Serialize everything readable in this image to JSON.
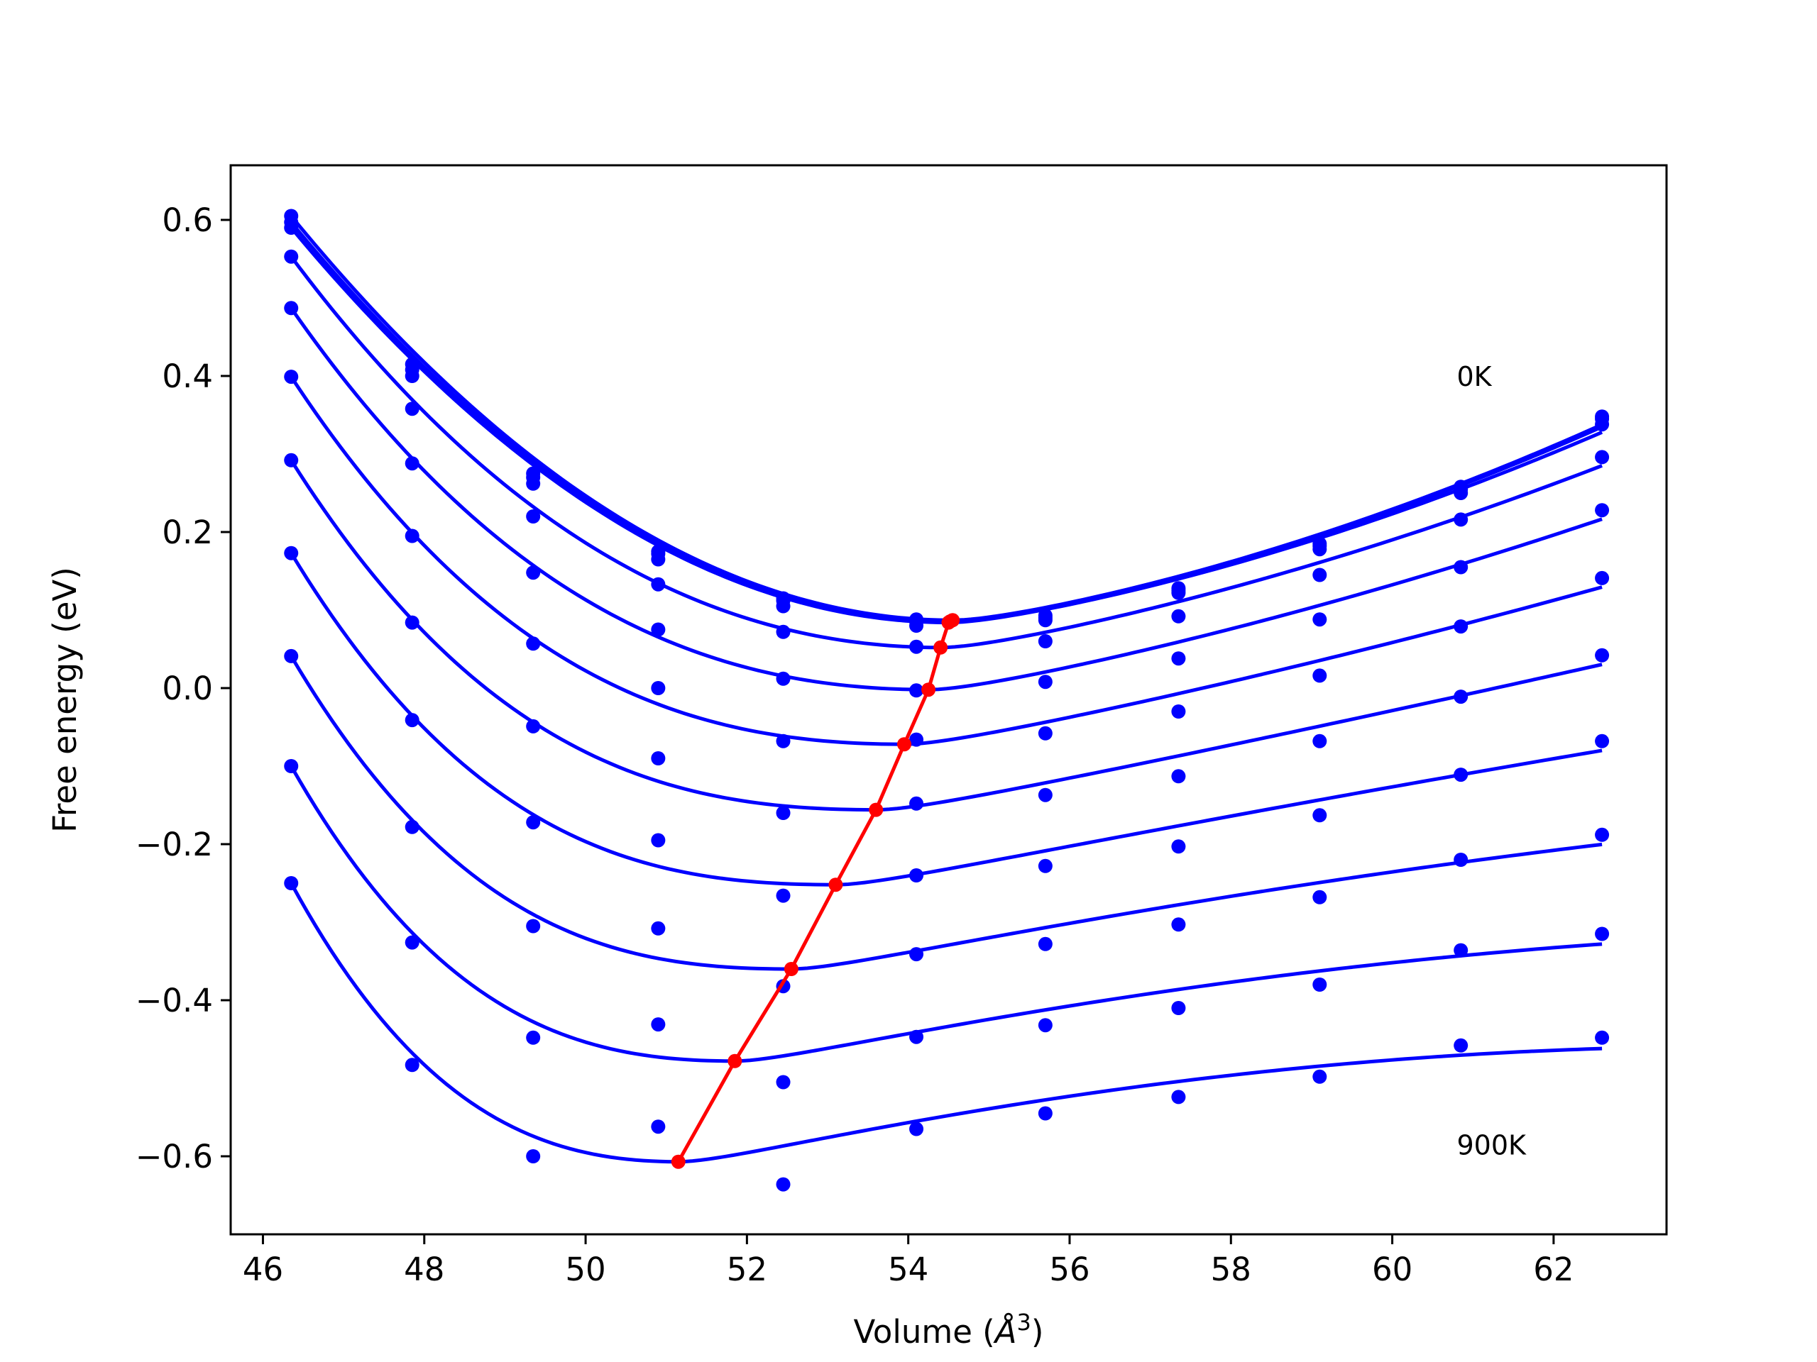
{
  "chart_data": {
    "type": "line",
    "title": "",
    "xlabel": "Volume (",
    "xlabel_unit_base": "Å",
    "xlabel_unit_exp": "3",
    "xlabel_close": ")",
    "ylabel": "Free energy (eV)",
    "xlim": [
      45.6,
      63.4
    ],
    "ylim": [
      -0.7,
      0.67
    ],
    "x_ticks": [
      46,
      48,
      50,
      52,
      54,
      56,
      58,
      60,
      62
    ],
    "x_tick_labels": [
      "46",
      "48",
      "50",
      "52",
      "54",
      "56",
      "58",
      "60",
      "62"
    ],
    "y_ticks": [
      -0.6,
      -0.4,
      -0.2,
      0.0,
      0.2,
      0.4,
      0.6
    ],
    "y_tick_labels": [
      "−0.6",
      "−0.4",
      "−0.2",
      "0.0",
      "0.2",
      "0.4",
      "0.6"
    ],
    "grid": false,
    "annotations": [
      {
        "text": "0K",
        "x": 60.8,
        "y": 0.4
      },
      {
        "text": "900K",
        "x": 60.8,
        "y": -0.585
      }
    ],
    "colors": {
      "isotherm": "#0000ff",
      "minimum_path": "#ff0000"
    },
    "volumes": [
      46.35,
      47.85,
      49.35,
      50.9,
      52.45,
      54.1,
      55.7,
      57.35,
      59.1,
      60.85,
      62.6
    ],
    "isotherms": [
      {
        "points": [
          0.605,
          0.415,
          0.275,
          0.175,
          0.115,
          0.088,
          0.093,
          0.128,
          0.185,
          0.258,
          0.348
        ],
        "fit": {
          "vmin": 54.55,
          "emin": 0.087,
          "b": 0.0185,
          "c": 0.0
        }
      },
      {
        "points": [
          0.597,
          0.408,
          0.27,
          0.172,
          0.112,
          0.085,
          0.09,
          0.125,
          0.182,
          0.255,
          0.345
        ],
        "fit": {
          "vmin": 54.52,
          "emin": 0.0855,
          "b": 0.0183,
          "c": 0.0
        }
      },
      {
        "points": [
          0.59,
          0.4,
          0.262,
          0.165,
          0.105,
          0.08,
          0.087,
          0.122,
          0.178,
          0.25,
          0.338
        ],
        "fit": {
          "vmin": 54.5,
          "emin": 0.084,
          "b": 0.0181,
          "c": 0.0
        }
      },
      {
        "points": [
          0.553,
          0.358,
          0.22,
          0.133,
          0.072,
          0.053,
          0.06,
          0.092,
          0.145,
          0.216,
          0.296
        ],
        "fit": {
          "vmin": 54.4,
          "emin": 0.052,
          "b": 0.0196,
          "c": -0.00022
        }
      },
      {
        "points": [
          0.487,
          0.288,
          0.148,
          0.075,
          0.012,
          -0.003,
          0.008,
          0.038,
          0.088,
          0.155,
          0.228
        ],
        "fit": {
          "vmin": 54.25,
          "emin": -0.002,
          "b": 0.0203,
          "c": -0.0004
        }
      },
      {
        "points": [
          0.399,
          0.195,
          0.057,
          0.0,
          -0.068,
          -0.066,
          -0.058,
          -0.03,
          0.016,
          0.079,
          0.141
        ],
        "fit": {
          "vmin": 53.95,
          "emin": -0.072,
          "b": 0.0206,
          "c": -0.00058
        }
      },
      {
        "points": [
          0.292,
          0.084,
          -0.049,
          -0.09,
          -0.16,
          -0.148,
          -0.137,
          -0.113,
          -0.068,
          -0.011,
          0.042
        ],
        "fit": {
          "vmin": 53.6,
          "emin": -0.156,
          "b": 0.0208,
          "c": -0.00077
        }
      },
      {
        "points": [
          0.173,
          -0.041,
          -0.172,
          -0.195,
          -0.266,
          -0.24,
          -0.228,
          -0.203,
          -0.163,
          -0.111,
          -0.068
        ],
        "fit": {
          "vmin": 53.1,
          "emin": -0.252,
          "b": 0.0212,
          "c": -0.00098
        }
      },
      {
        "points": [
          0.041,
          -0.178,
          -0.305,
          -0.308,
          -0.382,
          -0.341,
          -0.328,
          -0.303,
          -0.268,
          -0.22,
          -0.188
        ],
        "fit": {
          "vmin": 52.55,
          "emin": -0.36,
          "b": 0.0218,
          "c": -0.0012
        }
      },
      {
        "points": [
          -0.1,
          -0.326,
          -0.448,
          -0.431,
          -0.505,
          -0.447,
          -0.432,
          -0.41,
          -0.38,
          -0.336,
          -0.315
        ],
        "fit": {
          "vmin": 51.85,
          "emin": -0.478,
          "b": 0.0229,
          "c": -0.00148
        }
      },
      {
        "points": [
          -0.25,
          -0.483,
          -0.6,
          -0.562,
          -0.636,
          -0.565,
          -0.545,
          -0.524,
          -0.498,
          -0.458,
          -0.448
        ],
        "fit": {
          "vmin": 51.15,
          "emin": -0.607,
          "b": 0.0245,
          "c": -0.0018
        }
      }
    ],
    "minimum_path": {
      "x": [
        54.55,
        54.52,
        54.5,
        54.4,
        54.25,
        53.95,
        53.6,
        53.1,
        52.55,
        51.85,
        51.15
      ],
      "y": [
        0.087,
        0.0855,
        0.084,
        0.052,
        -0.002,
        -0.072,
        -0.156,
        -0.252,
        -0.36,
        -0.478,
        -0.607
      ]
    }
  }
}
